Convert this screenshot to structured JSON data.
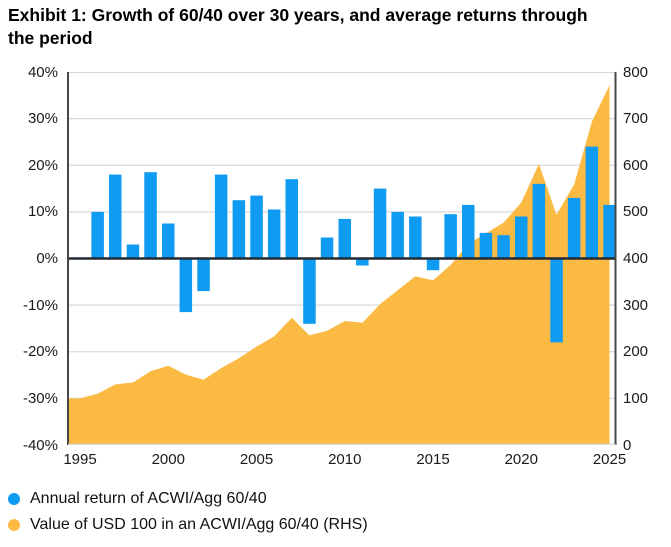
{
  "title": "Exhibit 1: Growth of 60/40 over 30 years, and average returns through the period",
  "colors": {
    "bar_blue": "#0F9BF2",
    "area_orange": "#FBBA43",
    "zero_line": "#222B33",
    "axis_line": "#474747",
    "gridline": "#D9D9D9"
  },
  "legend": {
    "items": [
      {
        "label": "Annual return of ACWI/Agg 60/40",
        "color_key": "bar_blue"
      },
      {
        "label": "Value of USD 100 in an ACWI/Agg 60/40 (RHS)",
        "color_key": "area_orange"
      }
    ]
  },
  "chart_data": {
    "type": "combo",
    "title": "Exhibit 1: Growth of 60/40 over 30 years, and average returns through the period",
    "grid": true,
    "legend_position": "bottom-left",
    "x_axis": {
      "min": 1995,
      "max": 2025,
      "tick_labels": [
        "1995",
        "2000",
        "2005",
        "2010",
        "2015",
        "2020",
        "2025"
      ]
    },
    "left_axis": {
      "min": -40,
      "max": 40,
      "unit": "%",
      "tick_labels": [
        "40%",
        "30%",
        "20%",
        "10%",
        "0%",
        "-10%",
        "-20%",
        "-30%",
        "-40%"
      ]
    },
    "right_axis": {
      "min": 0,
      "max": 800,
      "tick_labels": [
        "800",
        "700",
        "600",
        "500",
        "400",
        "300",
        "200",
        "100",
        "0"
      ]
    },
    "series": [
      {
        "name": "Annual return of ACWI/Agg 60/40",
        "type": "bar",
        "axis": "left",
        "color_key": "bar_blue",
        "x": [
          1996,
          1997,
          1998,
          1999,
          2000,
          2001,
          2002,
          2003,
          2004,
          2005,
          2006,
          2007,
          2008,
          2009,
          2010,
          2011,
          2012,
          2013,
          2014,
          2015,
          2016,
          2017,
          2018,
          2019,
          2020,
          2021,
          2022,
          2023,
          2024,
          2025
        ],
        "values": [
          10,
          18,
          3,
          18.5,
          7.5,
          -11.5,
          -7,
          18,
          12.5,
          13.5,
          10.5,
          17,
          -14,
          4.5,
          8.5,
          -1.5,
          15,
          10,
          9,
          -2.5,
          9.5,
          11.5,
          5.5,
          5,
          9,
          16,
          -18,
          13,
          24,
          11.5
        ]
      },
      {
        "name": "Value of USD 100 in an ACWI/Agg 60/40 (RHS)",
        "type": "area",
        "axis": "right",
        "color_key": "area_orange",
        "x": [
          1995,
          1996,
          1997,
          1998,
          1999,
          2000,
          2001,
          2002,
          2003,
          2004,
          2005,
          2006,
          2007,
          2008,
          2009,
          2010,
          2011,
          2012,
          2013,
          2014,
          2015,
          2016,
          2017,
          2018,
          2019,
          2020,
          2021,
          2022,
          2023,
          2024,
          2025
        ],
        "values": [
          100,
          110,
          130,
          134,
          158,
          170,
          151,
          140,
          165,
          186,
          211,
          233,
          273,
          235,
          245,
          266,
          262,
          302,
          332,
          362,
          353,
          386,
          431,
          454,
          477,
          520,
          603,
          494,
          559,
          693,
          772
        ]
      }
    ]
  }
}
